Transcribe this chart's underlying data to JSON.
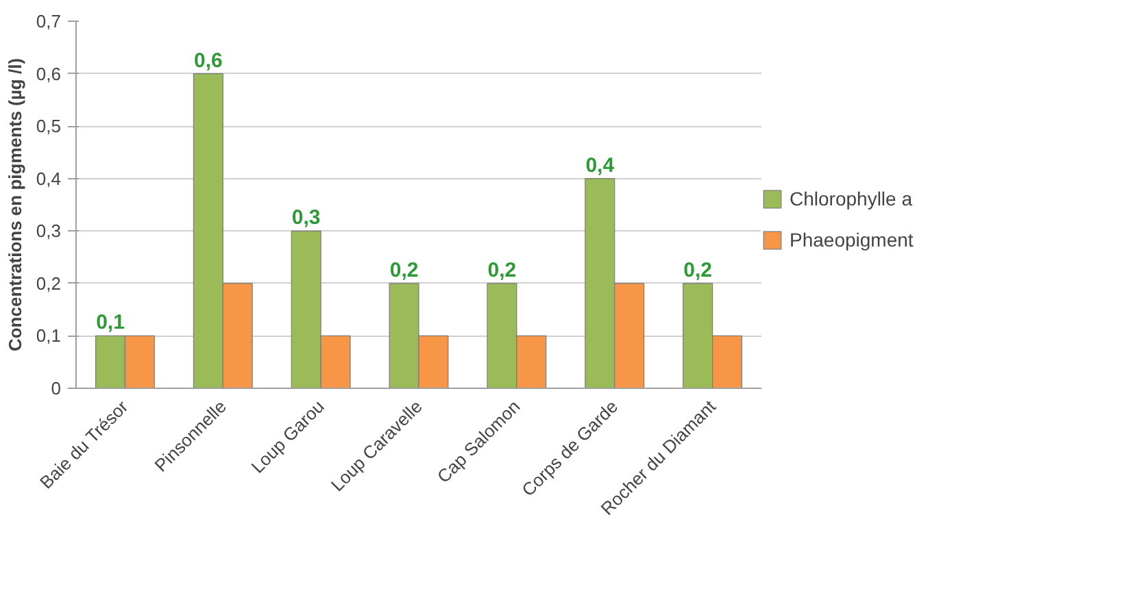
{
  "chart_data": {
    "type": "bar",
    "ylabel": "Concentrations en pigments (µg /l)",
    "categories": [
      "Baie du Trésor",
      "Pinsonnelle",
      "Loup Garou",
      "Loup Caravelle",
      "Cap Salomon",
      "Corps de Garde",
      "Rocher du Diamant"
    ],
    "series": [
      {
        "name": "Chlorophylle a",
        "color": "#9bbb59",
        "values": [
          0.1,
          0.6,
          0.3,
          0.2,
          0.2,
          0.4,
          0.2
        ],
        "value_labels": [
          "0,1",
          "0,6",
          "0,3",
          "0,2",
          "0,2",
          "0,4",
          "0,2"
        ]
      },
      {
        "name": "Phaeopigment",
        "color": "#f79646",
        "values": [
          0.1,
          0.2,
          0.1,
          0.1,
          0.1,
          0.2,
          0.1
        ]
      }
    ],
    "ylim": [
      0,
      0.7
    ],
    "yticks": [
      {
        "value": 0,
        "label": "0"
      },
      {
        "value": 0.1,
        "label": "0,1"
      },
      {
        "value": 0.2,
        "label": "0,2"
      },
      {
        "value": 0.3,
        "label": "0,3"
      },
      {
        "value": 0.4,
        "label": "0,4"
      },
      {
        "value": 0.5,
        "label": "0,5"
      },
      {
        "value": 0.6,
        "label": "0,6"
      },
      {
        "value": 0.7,
        "label": "0,7"
      }
    ],
    "grid": "y",
    "legend": "right"
  }
}
